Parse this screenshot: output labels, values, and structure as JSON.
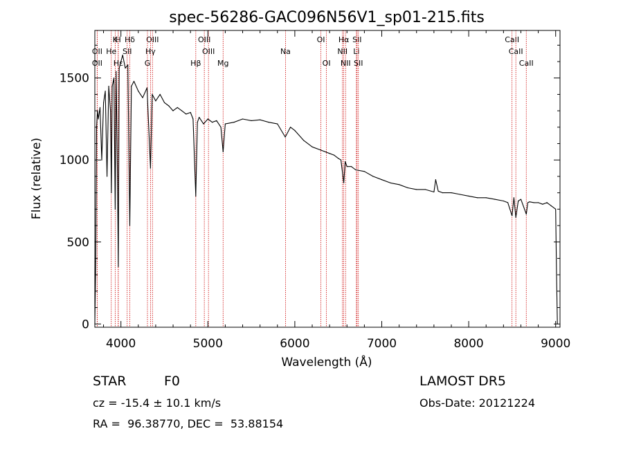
{
  "chart_data": {
    "type": "line",
    "title": "spec-56286-GAC096N56V1_sp01-215.fits",
    "xlabel": "Wavelength (Å)",
    "ylabel": "Flux (relative)",
    "xlim": [
      3700,
      9050
    ],
    "ylim": [
      -20,
      1790
    ],
    "xticks": [
      4000,
      5000,
      6000,
      7000,
      8000,
      9000
    ],
    "xtick_labels": [
      "4000",
      "5000",
      "6000",
      "7000",
      "8000",
      "9000"
    ],
    "yticks": [
      0,
      500,
      1000,
      1500
    ],
    "ytick_labels": [
      "0",
      "500",
      "1000",
      "1500"
    ],
    "grid": false,
    "legend": "none",
    "series": [
      {
        "x": [
          3700,
          3710,
          3720,
          3730,
          3740,
          3760,
          3780,
          3800,
          3820,
          3840,
          3860,
          3880,
          3890,
          3900,
          3920,
          3934,
          3945,
          3960,
          3970,
          3980,
          4000,
          4020,
          4050,
          4080,
          4102,
          4120,
          4150,
          4200,
          4250,
          4300,
          4340,
          4360,
          4400,
          4450,
          4500,
          4550,
          4600,
          4650,
          4700,
          4750,
          4800,
          4830,
          4861,
          4880,
          4900,
          4950,
          5000,
          5050,
          5100,
          5150,
          5175,
          5200,
          5300,
          5400,
          5500,
          5600,
          5700,
          5800,
          5890,
          5950,
          6000,
          6100,
          6200,
          6300,
          6400,
          6450,
          6500,
          6530,
          6563,
          6580,
          6600,
          6650,
          6700,
          6800,
          6900,
          7000,
          7100,
          7200,
          7300,
          7400,
          7500,
          7600,
          7620,
          7650,
          7700,
          7800,
          7900,
          8000,
          8100,
          8200,
          8300,
          8400,
          8450,
          8498,
          8520,
          8542,
          8570,
          8600,
          8662,
          8680,
          8700,
          8750,
          8800,
          8850,
          8900,
          8950,
          9000,
          9010,
          9020
        ],
        "y": [
          0,
          380,
          1200,
          1300,
          1250,
          1320,
          1000,
          1350,
          1420,
          900,
          1450,
          1300,
          800,
          1450,
          1500,
          700,
          1540,
          900,
          350,
          1560,
          1600,
          1640,
          1560,
          1580,
          600,
          1450,
          1480,
          1420,
          1380,
          1440,
          950,
          1400,
          1360,
          1400,
          1350,
          1330,
          1300,
          1320,
          1300,
          1280,
          1290,
          1250,
          780,
          1230,
          1260,
          1220,
          1250,
          1230,
          1240,
          1200,
          1050,
          1220,
          1230,
          1250,
          1240,
          1245,
          1230,
          1220,
          1140,
          1200,
          1180,
          1120,
          1080,
          1060,
          1040,
          1030,
          1010,
          1000,
          860,
          990,
          960,
          960,
          940,
          930,
          900,
          880,
          860,
          850,
          830,
          820,
          820,
          805,
          880,
          810,
          800,
          800,
          790,
          780,
          770,
          770,
          760,
          750,
          740,
          660,
          770,
          650,
          750,
          760,
          670,
          740,
          745,
          740,
          740,
          730,
          740,
          720,
          700,
          300,
          0
        ]
      }
    ],
    "spectral_lines": [
      {
        "name": "Hδ",
        "x": 4102,
        "row": 1
      },
      {
        "name": "K",
        "x": 3934,
        "row": 1
      },
      {
        "name": "H",
        "x": 3968,
        "row": 1
      },
      {
        "name": "OIII",
        "x": 4363,
        "row": 1
      },
      {
        "name": "OIII",
        "x": 4959,
        "row": 1
      },
      {
        "name": "OI",
        "x": 6300,
        "row": 1
      },
      {
        "name": "Hα",
        "x": 6563,
        "row": 1
      },
      {
        "name": "SII",
        "x": 6716,
        "row": 1
      },
      {
        "name": "CaII",
        "x": 8498,
        "row": 1
      },
      {
        "name": "OII",
        "x": 3727,
        "row": 2
      },
      {
        "name": "He",
        "x": 3889,
        "row": 2
      },
      {
        "name": "SII",
        "x": 4072,
        "row": 2
      },
      {
        "name": "Hγ",
        "x": 4340,
        "row": 2
      },
      {
        "name": "OIII",
        "x": 5007,
        "row": 2
      },
      {
        "name": "Na",
        "x": 5893,
        "row": 2
      },
      {
        "name": "NII",
        "x": 6548,
        "row": 2
      },
      {
        "name": "Li",
        "x": 6708,
        "row": 2
      },
      {
        "name": "CaII",
        "x": 8542,
        "row": 2
      },
      {
        "name": "OII",
        "x": 3727,
        "row": 3
      },
      {
        "name": "Hε",
        "x": 3970,
        "row": 3
      },
      {
        "name": "G",
        "x": 4305,
        "row": 3
      },
      {
        "name": "Hβ",
        "x": 4861,
        "row": 3
      },
      {
        "name": "Mg",
        "x": 5175,
        "row": 3
      },
      {
        "name": "OI",
        "x": 6364,
        "row": 3
      },
      {
        "name": "NII",
        "x": 6584,
        "row": 3
      },
      {
        "name": "SII",
        "x": 6731,
        "row": 3
      },
      {
        "name": "CaII",
        "x": 8662,
        "row": 3
      }
    ],
    "line_marker_color": "#cc0000"
  },
  "info": {
    "class": "STAR",
    "subclass": "F0",
    "survey": "LAMOST DR5",
    "cz": "cz = -15.4 ± 10.1 km/s",
    "obs_date": "Obs-Date: 20121224",
    "coords": "RA =  96.38770, DEC =  53.88154"
  }
}
